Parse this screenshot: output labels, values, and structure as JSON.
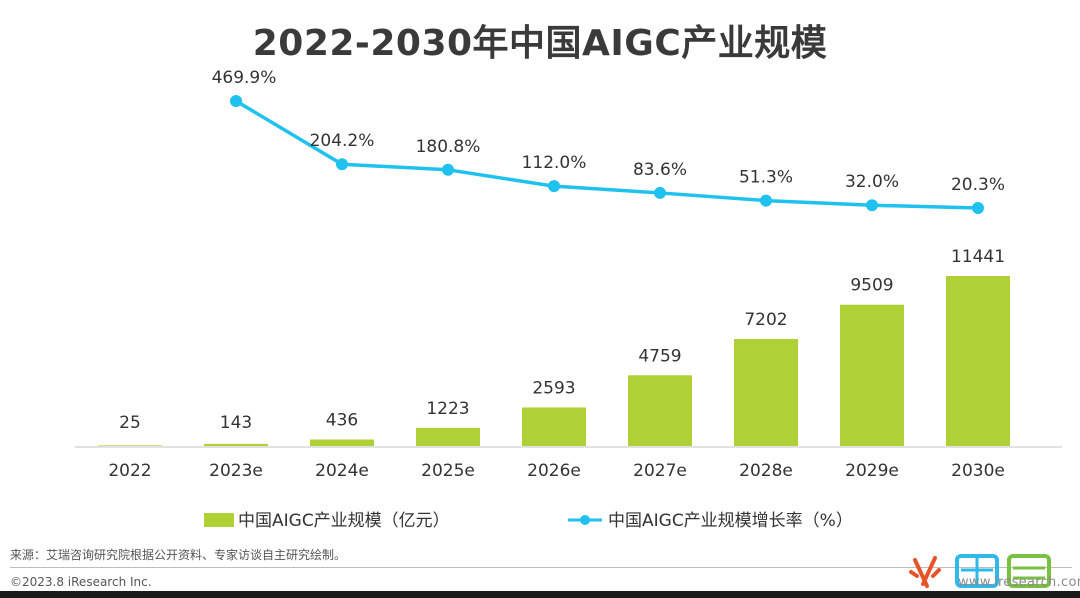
{
  "title": "2022-2030年中国AIGC产业规模",
  "chart_data": {
    "type": "bar",
    "categories": [
      "2022",
      "2023e",
      "2024e",
      "2025e",
      "2026e",
      "2027e",
      "2028e",
      "2029e",
      "2030e"
    ],
    "series": [
      {
        "name": "中国AIGC产业规模（亿元）",
        "type": "bar",
        "values": [
          25,
          143,
          436,
          1223,
          2593,
          4759,
          7202,
          9509,
          11441
        ],
        "labels": [
          "25",
          "143",
          "436",
          "1223",
          "2593",
          "4759",
          "7202",
          "9509",
          "11441"
        ],
        "color": "#b0d136"
      },
      {
        "name": "中国AIGC产业规模增长率（%）",
        "type": "line",
        "values": [
          null,
          469.9,
          204.2,
          180.8,
          112.0,
          83.6,
          51.3,
          32.0,
          20.3
        ],
        "labels": [
          "",
          "469.9%",
          "204.2%",
          "180.8%",
          "112.0%",
          "83.6%",
          "51.3%",
          "32.0%",
          "20.3%"
        ],
        "color": "#1fc1ee"
      }
    ],
    "legend_position": "bottom",
    "grid": false
  },
  "source": "来源：艾瑞咨询研究院根据公开资料、专家访谈自主研究绘制。",
  "copyright": "©2023.8 iResearch Inc.",
  "watermark": {
    "url": "www.iresearch.com.cn"
  }
}
